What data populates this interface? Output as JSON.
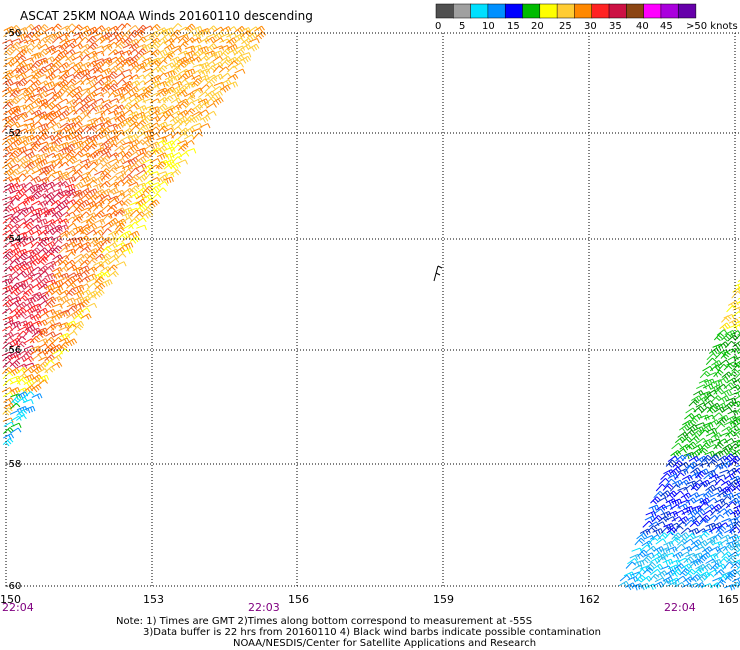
{
  "title": "ASCAT 25KM NOAA Winds 20160110 descending",
  "legend": {
    "labels": [
      "0",
      "5",
      "10",
      "15",
      "20",
      "25",
      "30",
      "35",
      "40",
      "45",
      ">50 knots"
    ],
    "colors": [
      "#505050",
      "#a0a0a0",
      "#00e0ff",
      "#0090ff",
      "#0000ff",
      "#00bb00",
      "#ffff00",
      "#ffcc33",
      "#ff8800",
      "#ff2222",
      "#cc1144",
      "#8b4513",
      "#ff00ff",
      "#aa00dd",
      "#6600aa"
    ]
  },
  "lat_labels": [
    "-50",
    "-52",
    "-54",
    "-56",
    "-58",
    "-60"
  ],
  "lon_labels": [
    "150",
    "153",
    "156",
    "159",
    "162",
    "165"
  ],
  "time_labels": [
    "22:04",
    "22:03",
    "22:04"
  ],
  "notes": [
    "Note: 1) Times are GMT 2)Times along bottom correspond to measurement at -55S",
    "3)Data buffer is 22 hrs from 20160110 4) Black wind barbs indicate possible contamination",
    "NOAA/NESDIS/Center for Satellite Applications and Research"
  ]
}
